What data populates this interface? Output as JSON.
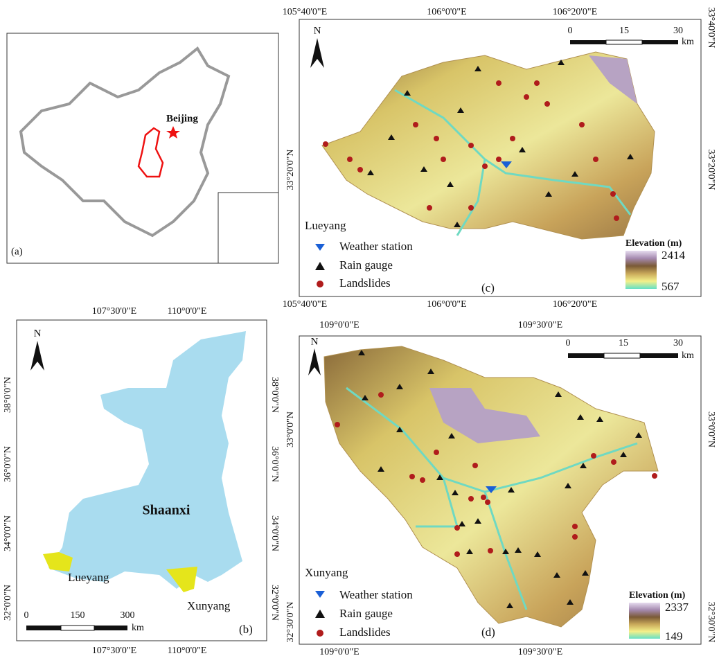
{
  "panel_a": {
    "label": "(a)",
    "city": "Beijing"
  },
  "panel_b": {
    "label": "(b)",
    "north": "N",
    "top_ticks": [
      "107°30'0\"E",
      "110°0'0\"E"
    ],
    "bottom_ticks": [
      "107°30'0\"E",
      "110°0'0\"E"
    ],
    "left_ticks": [
      "38°0'0\"N",
      "36°0'0\"N",
      "34°0'0\"N",
      "32°0'0\"N"
    ],
    "right_ticks": [
      "38°0'0\"N",
      "36°0'0\"N",
      "34°0'0\"N",
      "32°0'0\"N"
    ],
    "province": "Shaanxi",
    "sites": [
      "Lueyang",
      "Xunyang"
    ],
    "scale": [
      "0",
      "150",
      "300"
    ],
    "scale_unit": "km"
  },
  "panel_c": {
    "label": "(c)",
    "north": "N",
    "top_ticks": [
      "105°40'0\"E",
      "106°0'0\"E",
      "106°20'0\"E"
    ],
    "bottom_ticks": [
      "105°40'0\"E",
      "106°0'0\"E",
      "106°20'0\"E"
    ],
    "left_ticks": [
      "33°20'0\"N"
    ],
    "right_ticks": [
      "33°40'0\"N",
      "33°20'0\"N"
    ],
    "scale": [
      "0",
      "15",
      "30"
    ],
    "scale_unit": "km",
    "legend": {
      "title": "Lueyang",
      "items": [
        "Weather station",
        "Rain gauge",
        "Landslides"
      ]
    },
    "elevation": {
      "title": "Elevation (m)",
      "max": "2414",
      "min": "567"
    }
  },
  "panel_d": {
    "label": "(d)",
    "north": "N",
    "top_ticks": [
      "109°0'0\"E",
      "109°30'0\"E"
    ],
    "bottom_ticks": [
      "109°0'0\"E",
      "109°30'0\"E"
    ],
    "left_ticks": [
      "33°0'0\"N",
      "32°30'0\"N"
    ],
    "right_ticks": [
      "33°0'0\"N",
      "32°30'0\"N"
    ],
    "scale": [
      "0",
      "15",
      "30"
    ],
    "scale_unit": "km",
    "legend": {
      "title": "Xunyang",
      "items": [
        "Weather station",
        "Rain gauge",
        "Landslides"
      ]
    },
    "elevation": {
      "title": "Elevation (m)",
      "max": "2337",
      "min": "149"
    }
  }
}
